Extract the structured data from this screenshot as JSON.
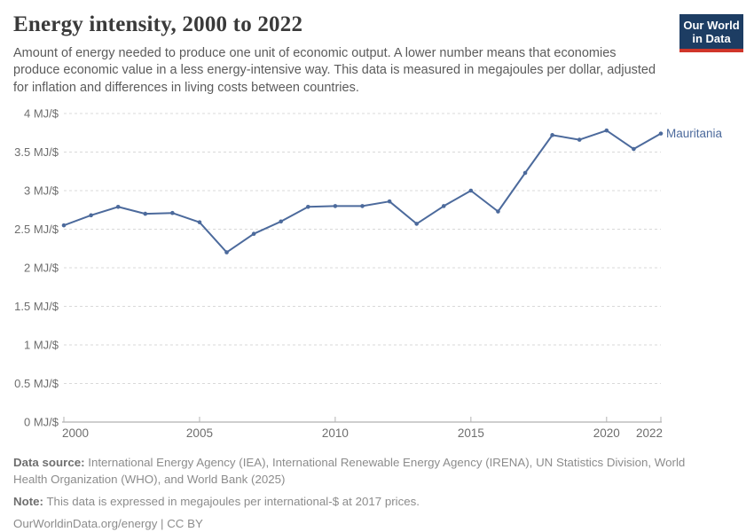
{
  "header": {
    "title": "Energy intensity, 2000 to 2022",
    "subtitle": "Amount of energy needed to produce one unit of economic output. A lower number means that economies produce economic value in a less energy-intensive way. This data is measured in megajoules per dollar, adjusted for inflation and differences in living costs between countries.",
    "logo": {
      "line1": "Our World",
      "line2": "in Data",
      "bg_color": "#1d3d63",
      "bar_color": "#d0362a"
    }
  },
  "chart_data": {
    "type": "line",
    "title": "Energy intensity, 2000 to 2022",
    "entity_label": "Mauritania",
    "x": [
      2000,
      2001,
      2002,
      2003,
      2004,
      2005,
      2006,
      2007,
      2008,
      2009,
      2010,
      2011,
      2012,
      2013,
      2014,
      2015,
      2016,
      2017,
      2018,
      2019,
      2020,
      2021,
      2022
    ],
    "series": [
      {
        "name": "Mauritania",
        "color": "#4c6a9c",
        "values": [
          2.55,
          2.68,
          2.79,
          2.7,
          2.71,
          2.59,
          2.2,
          2.44,
          2.6,
          2.79,
          2.8,
          2.8,
          2.86,
          2.57,
          2.8,
          3.0,
          2.73,
          3.23,
          3.72,
          3.66,
          3.78,
          3.54,
          3.74
        ]
      }
    ],
    "xlim": [
      2000,
      2022
    ],
    "ylim": [
      0,
      4
    ],
    "xticks": [
      2000,
      2005,
      2010,
      2015,
      2020,
      2022
    ],
    "yticks": [
      0,
      0.5,
      1,
      1.5,
      2,
      2.5,
      3,
      3.5,
      4
    ],
    "ytick_labels": [
      "0 MJ/$",
      "0.5 MJ/$",
      "1 MJ/$",
      "1.5 MJ/$",
      "2 MJ/$",
      "2.5 MJ/$",
      "3 MJ/$",
      "3.5 MJ/$",
      "4 MJ/$"
    ],
    "unit": "MJ/$",
    "grid": "horizontal-dashed",
    "legend_position": "end-of-line",
    "colors": {
      "grid": "#d9d9d9",
      "axis": "#9e9e9e",
      "tick_text": "#6e6e6e",
      "tick_mark": "#b3b3b3"
    }
  },
  "footer": {
    "data_source_label": "Data source:",
    "data_source_text": " International Energy Agency (IEA), International Renewable Energy Agency (IRENA), UN Statistics Division, World Health Organization (WHO), and World Bank (2025)",
    "note_label": "Note:",
    "note_text": " This data is expressed in megajoules per international-$ at 2017 prices.",
    "license": "OurWorldinData.org/energy | CC BY"
  }
}
